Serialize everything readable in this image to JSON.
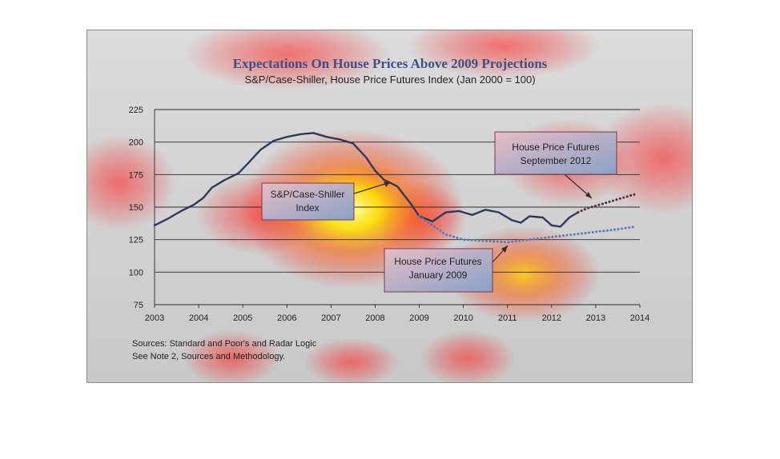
{
  "chart_data": {
    "type": "line",
    "title": "Expectations On House Prices Above 2009 Projections",
    "subtitle": "S&P/Case-Shiller, House Price Futures Index (Jan 2000 = 100)",
    "xlabel": "",
    "ylabel": "",
    "xlim": [
      2003,
      2014
    ],
    "ylim": [
      75,
      225
    ],
    "x_ticks": [
      "2003",
      "2004",
      "2005",
      "2006",
      "2007",
      "2008",
      "2009",
      "2010",
      "2011",
      "2012",
      "2013",
      "2014"
    ],
    "y_ticks": [
      "75",
      "100",
      "125",
      "150",
      "175",
      "200",
      "225"
    ],
    "grid": "horizontal",
    "series": [
      {
        "name": "S&P/Case-Shiller Index",
        "style": "solid",
        "color": "#2e3a5c",
        "points": [
          [
            2003.0,
            136
          ],
          [
            2003.3,
            141
          ],
          [
            2003.6,
            147
          ],
          [
            2003.9,
            152
          ],
          [
            2004.1,
            157
          ],
          [
            2004.3,
            165
          ],
          [
            2004.6,
            171
          ],
          [
            2004.9,
            176
          ],
          [
            2005.1,
            183
          ],
          [
            2005.4,
            194
          ],
          [
            2005.7,
            201
          ],
          [
            2006.0,
            204
          ],
          [
            2006.3,
            206
          ],
          [
            2006.6,
            207
          ],
          [
            2006.9,
            204
          ],
          [
            2007.2,
            202
          ],
          [
            2007.5,
            199
          ],
          [
            2007.8,
            188
          ],
          [
            2008.0,
            178
          ],
          [
            2008.2,
            171
          ],
          [
            2008.5,
            166
          ],
          [
            2008.8,
            153
          ],
          [
            2009.0,
            143
          ],
          [
            2009.3,
            139
          ],
          [
            2009.6,
            146
          ],
          [
            2009.9,
            147
          ],
          [
            2010.2,
            144
          ],
          [
            2010.5,
            148
          ],
          [
            2010.8,
            146
          ],
          [
            2011.1,
            140
          ],
          [
            2011.3,
            138
          ],
          [
            2011.5,
            143
          ],
          [
            2011.8,
            142
          ],
          [
            2012.0,
            136
          ],
          [
            2012.2,
            135
          ],
          [
            2012.4,
            142
          ],
          [
            2012.6,
            146
          ]
        ]
      },
      {
        "name": "House Price Futures January 2009",
        "style": "dotted",
        "color": "#5b78b8",
        "points": [
          [
            2009.0,
            143
          ],
          [
            2009.3,
            136
          ],
          [
            2009.6,
            129
          ],
          [
            2010.0,
            125
          ],
          [
            2010.5,
            124
          ],
          [
            2011.0,
            123
          ],
          [
            2011.5,
            125
          ],
          [
            2012.0,
            127
          ],
          [
            2012.5,
            129
          ],
          [
            2013.0,
            131
          ],
          [
            2013.5,
            133
          ],
          [
            2013.9,
            135
          ]
        ]
      },
      {
        "name": "House Price Futures September 2012",
        "style": "dotted",
        "color": "#5a2a40",
        "points": [
          [
            2012.6,
            146
          ],
          [
            2012.8,
            149
          ],
          [
            2013.0,
            151
          ],
          [
            2013.3,
            154
          ],
          [
            2013.6,
            157
          ],
          [
            2013.9,
            160
          ]
        ]
      }
    ],
    "annotations": [
      {
        "text": [
          "S&P/Case-Shiller",
          "Index"
        ]
      },
      {
        "text": [
          "House Price Futures",
          "September 2012"
        ]
      },
      {
        "text": [
          "House Price Futures",
          "January 2009"
        ]
      }
    ],
    "notes": [
      "Sources:  Standard and Poor's and Radar Logic",
      "See Note 2, Sources and Methodology."
    ]
  }
}
